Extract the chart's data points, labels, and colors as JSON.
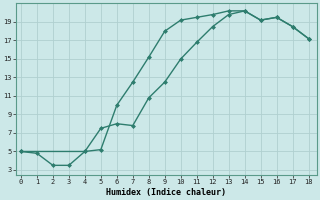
{
  "xlabel": "Humidex (Indice chaleur)",
  "bg_color": "#cce8e8",
  "grid_color": "#b0d0d0",
  "line_color": "#2e7d6e",
  "line1_x": [
    0,
    1,
    2,
    3,
    4,
    5,
    6,
    7,
    8,
    9,
    10,
    11,
    12,
    13,
    14,
    15,
    16,
    17,
    18
  ],
  "line1_y": [
    5.0,
    4.8,
    3.5,
    3.5,
    5.0,
    5.2,
    10.0,
    12.5,
    15.2,
    18.0,
    19.2,
    19.5,
    19.8,
    20.2,
    20.2,
    19.2,
    19.5,
    18.5,
    17.2
  ],
  "line2_x": [
    0,
    4,
    5,
    6,
    7,
    8,
    9,
    10,
    11,
    12,
    13,
    14,
    15,
    16,
    17,
    18
  ],
  "line2_y": [
    5.0,
    5.0,
    7.5,
    8.0,
    7.8,
    10.8,
    12.5,
    15.0,
    16.8,
    18.5,
    19.8,
    20.2,
    19.2,
    19.5,
    18.5,
    17.2
  ],
  "xlim": [
    -0.3,
    18.5
  ],
  "ylim": [
    2.5,
    21.0
  ],
  "xticks": [
    0,
    1,
    2,
    3,
    4,
    5,
    6,
    7,
    8,
    9,
    10,
    11,
    12,
    13,
    14,
    15,
    16,
    17,
    18
  ],
  "yticks": [
    3,
    5,
    7,
    9,
    11,
    13,
    15,
    17,
    19
  ]
}
